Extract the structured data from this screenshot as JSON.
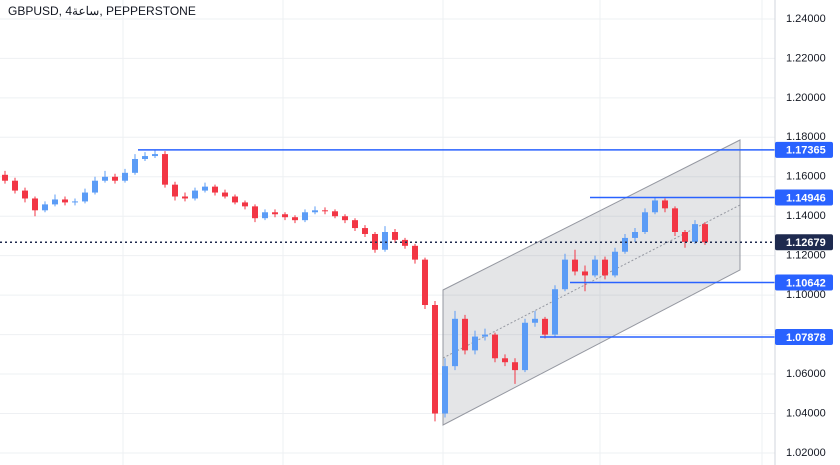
{
  "chart_data": {
    "type": "candlestick",
    "title": "GBPUSD, 4ساعة, PEPPERSTONE",
    "ylim": [
      1.0139,
      1.2496
    ],
    "yticks": [
      {
        "value": 1.24,
        "label": "1.24000"
      },
      {
        "value": 1.22,
        "label": "1.22000"
      },
      {
        "value": 1.2,
        "label": "1.20000"
      },
      {
        "value": 1.18,
        "label": "1.18000"
      },
      {
        "value": 1.16,
        "label": "1.16000"
      },
      {
        "value": 1.14,
        "label": "1.14000"
      },
      {
        "value": 1.12,
        "label": "1.12000"
      },
      {
        "value": 1.1,
        "label": "1.10000"
      },
      {
        "value": 1.08,
        "label": "1.08000"
      },
      {
        "value": 1.06,
        "label": "1.06000"
      },
      {
        "value": 1.04,
        "label": "1.04000"
      },
      {
        "value": 1.02,
        "label": "1.02000"
      }
    ],
    "grid": true,
    "up_color": "#5b9cf6",
    "down_color": "#f23645",
    "level_color": "#2962ff",
    "current_color": "#1e2a4f",
    "levels": [
      1.17365,
      1.14946,
      1.10642,
      1.07878
    ],
    "current_price": 1.12679,
    "candles": [
      [
        1.161,
        1.163,
        1.1565,
        1.158
      ],
      [
        1.158,
        1.1595,
        1.1515,
        1.153
      ],
      [
        1.153,
        1.1545,
        1.147,
        1.149
      ],
      [
        1.149,
        1.15,
        1.14,
        1.143
      ],
      [
        1.143,
        1.1475,
        1.142,
        1.146
      ],
      [
        1.146,
        1.151,
        1.145,
        1.1485
      ],
      [
        1.1485,
        1.15,
        1.1455,
        1.147
      ],
      [
        1.147,
        1.149,
        1.1455,
        1.1475
      ],
      [
        1.1475,
        1.154,
        1.1465,
        1.152
      ],
      [
        1.152,
        1.16,
        1.151,
        1.158
      ],
      [
        1.158,
        1.163,
        1.157,
        1.16
      ],
      [
        1.16,
        1.1615,
        1.1565,
        1.158
      ],
      [
        1.158,
        1.164,
        1.157,
        1.162
      ],
      [
        1.162,
        1.1715,
        1.161,
        1.169
      ],
      [
        1.169,
        1.1725,
        1.168,
        1.1705
      ],
      [
        1.1705,
        1.1737,
        1.1695,
        1.1715
      ],
      [
        1.1715,
        1.173,
        1.1545,
        1.156
      ],
      [
        1.156,
        1.1575,
        1.148,
        1.15
      ],
      [
        1.15,
        1.152,
        1.1475,
        1.149
      ],
      [
        1.149,
        1.1545,
        1.148,
        1.153
      ],
      [
        1.153,
        1.157,
        1.152,
        1.155
      ],
      [
        1.155,
        1.156,
        1.1505,
        1.152
      ],
      [
        1.152,
        1.1535,
        1.149,
        1.15
      ],
      [
        1.15,
        1.151,
        1.146,
        1.147
      ],
      [
        1.147,
        1.148,
        1.1435,
        1.145
      ],
      [
        1.145,
        1.146,
        1.137,
        1.139
      ],
      [
        1.139,
        1.1435,
        1.138,
        1.142
      ],
      [
        1.142,
        1.1435,
        1.1395,
        1.141
      ],
      [
        1.141,
        1.142,
        1.138,
        1.1395
      ],
      [
        1.1395,
        1.1405,
        1.1365,
        1.138
      ],
      [
        1.138,
        1.1435,
        1.137,
        1.142
      ],
      [
        1.142,
        1.145,
        1.141,
        1.143
      ],
      [
        1.143,
        1.1445,
        1.141,
        1.1425
      ],
      [
        1.1425,
        1.1435,
        1.139,
        1.14
      ],
      [
        1.14,
        1.141,
        1.1365,
        1.138
      ],
      [
        1.138,
        1.139,
        1.1325,
        1.134
      ],
      [
        1.134,
        1.1355,
        1.1295,
        1.131
      ],
      [
        1.131,
        1.132,
        1.1215,
        1.123
      ],
      [
        1.123,
        1.135,
        1.122,
        1.132
      ],
      [
        1.132,
        1.1335,
        1.1265,
        1.128
      ],
      [
        1.128,
        1.129,
        1.1235,
        1.125
      ],
      [
        1.125,
        1.126,
        1.116,
        1.118
      ],
      [
        1.118,
        1.119,
        1.093,
        1.095
      ],
      [
        1.095,
        1.097,
        1.036,
        1.04
      ],
      [
        1.04,
        1.068,
        1.038,
        1.064
      ],
      [
        1.064,
        1.092,
        1.062,
        1.088
      ],
      [
        1.088,
        1.09,
        1.07,
        1.072
      ],
      [
        1.072,
        1.082,
        1.07,
        1.079
      ],
      [
        1.079,
        1.083,
        1.077,
        1.08
      ],
      [
        1.08,
        1.081,
        1.066,
        1.068
      ],
      [
        1.068,
        1.07,
        1.064,
        1.066
      ],
      [
        1.066,
        1.068,
        1.055,
        1.062
      ],
      [
        1.062,
        1.088,
        1.061,
        1.086
      ],
      [
        1.086,
        1.092,
        1.084,
        1.088
      ],
      [
        1.088,
        1.089,
        1.078,
        1.08
      ],
      [
        1.08,
        1.105,
        1.079,
        1.103
      ],
      [
        1.103,
        1.121,
        1.102,
        1.118
      ],
      [
        1.118,
        1.123,
        1.11,
        1.112
      ],
      [
        1.112,
        1.115,
        1.102,
        1.11
      ],
      [
        1.11,
        1.12,
        1.109,
        1.118
      ],
      [
        1.118,
        1.1195,
        1.108,
        1.11
      ],
      [
        1.11,
        1.124,
        1.109,
        1.122
      ],
      [
        1.122,
        1.131,
        1.121,
        1.129
      ],
      [
        1.129,
        1.134,
        1.127,
        1.132
      ],
      [
        1.132,
        1.144,
        1.131,
        1.142
      ],
      [
        1.142,
        1.1495,
        1.141,
        1.148
      ],
      [
        1.148,
        1.149,
        1.142,
        1.144
      ],
      [
        1.144,
        1.145,
        1.13,
        1.132
      ],
      [
        1.132,
        1.133,
        1.124,
        1.127
      ],
      [
        1.127,
        1.138,
        1.126,
        1.136
      ],
      [
        1.136,
        1.137,
        1.1255,
        1.1268
      ]
    ]
  }
}
